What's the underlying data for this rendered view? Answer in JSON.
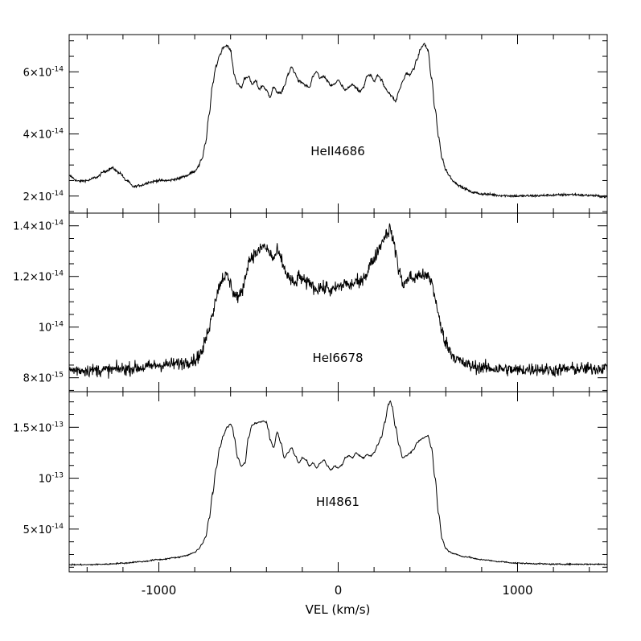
{
  "chart_data": {
    "type": "line",
    "xlabel": "VEL (km/s)",
    "xlim": [
      -1500,
      1500
    ],
    "xticks": [
      {
        "value": -1000,
        "label": "-1000"
      },
      {
        "value": 0,
        "label": "0"
      },
      {
        "value": 1000,
        "label": "1000"
      }
    ],
    "panels": [
      {
        "name": "HeII4686",
        "label": "HeII4686",
        "ylim": [
          1.45e-14,
          7.2e-14
        ],
        "yticks": [
          {
            "value": 2e-14,
            "mantissa": "2",
            "exp": "-14"
          },
          {
            "value": 4e-14,
            "mantissa": "4",
            "exp": "-14"
          },
          {
            "value": 6e-14,
            "mantissa": "6",
            "exp": "-14"
          }
        ],
        "noise": 4e-16,
        "x": [
          -1500,
          -1450,
          -1400,
          -1350,
          -1300,
          -1260,
          -1220,
          -1180,
          -1140,
          -1100,
          -1050,
          -1000,
          -950,
          -900,
          -850,
          -800,
          -780,
          -760,
          -740,
          -720,
          -700,
          -680,
          -660,
          -640,
          -620,
          -600,
          -590,
          -580,
          -560,
          -540,
          -520,
          -500,
          -480,
          -460,
          -440,
          -420,
          -400,
          -380,
          -360,
          -340,
          -320,
          -300,
          -280,
          -260,
          -240,
          -220,
          -200,
          -180,
          -160,
          -140,
          -120,
          -100,
          -80,
          -60,
          -40,
          -20,
          0,
          20,
          40,
          60,
          80,
          100,
          120,
          140,
          160,
          180,
          200,
          220,
          240,
          260,
          280,
          300,
          320,
          340,
          360,
          380,
          400,
          420,
          440,
          460,
          480,
          500,
          520,
          540,
          560,
          580,
          600,
          620,
          640,
          660,
          680,
          700,
          750,
          800,
          850,
          900,
          1000,
          1100,
          1200,
          1300,
          1400,
          1500
        ],
        "y": [
          2.65e-14,
          2.48e-14,
          2.5e-14,
          2.6e-14,
          2.8e-14,
          2.9e-14,
          2.75e-14,
          2.5e-14,
          2.3e-14,
          2.35e-14,
          2.45e-14,
          2.5e-14,
          2.5e-14,
          2.55e-14,
          2.65e-14,
          2.8e-14,
          2.95e-14,
          3.2e-14,
          3.7e-14,
          4.6e-14,
          5.6e-14,
          6.2e-14,
          6.55e-14,
          6.8e-14,
          6.85e-14,
          6.7e-14,
          6.3e-14,
          5.9e-14,
          5.6e-14,
          5.5e-14,
          5.8e-14,
          5.85e-14,
          5.6e-14,
          5.7e-14,
          5.45e-14,
          5.55e-14,
          5.4e-14,
          5.2e-14,
          5.5e-14,
          5.35e-14,
          5.3e-14,
          5.55e-14,
          5.9e-14,
          6.15e-14,
          5.95e-14,
          5.7e-14,
          5.65e-14,
          5.55e-14,
          5.5e-14,
          5.85e-14,
          6e-14,
          5.8e-14,
          5.85e-14,
          5.7e-14,
          5.55e-14,
          5.6e-14,
          5.75e-14,
          5.55e-14,
          5.4e-14,
          5.5e-14,
          5.6e-14,
          5.5e-14,
          5.35e-14,
          5.5e-14,
          5.85e-14,
          5.9e-14,
          5.7e-14,
          5.9e-14,
          5.75e-14,
          5.5e-14,
          5.35e-14,
          5.2e-14,
          5.05e-14,
          5.4e-14,
          5.7e-14,
          5.95e-14,
          5.9e-14,
          6.1e-14,
          6.4e-14,
          6.75e-14,
          6.9e-14,
          6.7e-14,
          5.8e-14,
          4.8e-14,
          3.9e-14,
          3.2e-14,
          2.85e-14,
          2.65e-14,
          2.5e-14,
          2.4e-14,
          2.32e-14,
          2.25e-14,
          2.12e-14,
          2.07e-14,
          2.05e-14,
          2.02e-14,
          2e-14,
          2.01e-14,
          2.03e-14,
          2.05e-14,
          2.02e-14,
          1.98e-14
        ]
      },
      {
        "name": "HeI6678",
        "label": "HeI6678",
        "ylim": [
          7.45e-15,
          1.45e-14
        ],
        "yticks": [
          {
            "value": 8e-15,
            "mantissa": "8",
            "exp": "-15"
          },
          {
            "value": 1e-14,
            "mantissa": "",
            "exp": "-14"
          },
          {
            "value": 1.2e-14,
            "mantissa": "1.2",
            "exp": "-14"
          },
          {
            "value": 1.4e-14,
            "mantissa": "1.4",
            "exp": "-14"
          }
        ],
        "noise": 2.6e-16,
        "x": [
          -1500,
          -1400,
          -1300,
          -1200,
          -1100,
          -1000,
          -900,
          -800,
          -760,
          -740,
          -720,
          -700,
          -680,
          -660,
          -640,
          -620,
          -600,
          -580,
          -560,
          -540,
          -520,
          -500,
          -480,
          -460,
          -440,
          -420,
          -400,
          -380,
          -360,
          -340,
          -320,
          -300,
          -280,
          -260,
          -240,
          -220,
          -200,
          -180,
          -160,
          -140,
          -120,
          -100,
          -80,
          -60,
          -40,
          -20,
          0,
          20,
          40,
          60,
          80,
          100,
          120,
          140,
          160,
          180,
          200,
          220,
          240,
          260,
          280,
          290,
          300,
          320,
          340,
          360,
          380,
          400,
          420,
          440,
          460,
          480,
          500,
          520,
          540,
          560,
          580,
          600,
          620,
          640,
          660,
          680,
          700,
          750,
          800,
          900,
          1000,
          1100,
          1200,
          1300,
          1400,
          1500
        ],
        "y": [
          8.3e-15,
          8.3e-15,
          8.3e-15,
          8.35e-15,
          8.4e-15,
          8.5e-15,
          8.55e-15,
          8.7e-15,
          9e-15,
          9.5e-15,
          1e-14,
          1.06e-14,
          1.12e-14,
          1.17e-14,
          1.2e-14,
          1.2e-14,
          1.17e-14,
          1.13e-14,
          1.12e-14,
          1.13e-14,
          1.19e-14,
          1.26e-14,
          1.28e-14,
          1.29e-14,
          1.3e-14,
          1.32e-14,
          1.31e-14,
          1.29e-14,
          1.27e-14,
          1.3e-14,
          1.27e-14,
          1.23e-14,
          1.2e-14,
          1.18e-14,
          1.17e-14,
          1.2e-14,
          1.19e-14,
          1.17e-14,
          1.18e-14,
          1.16e-14,
          1.15e-14,
          1.16e-14,
          1.15e-14,
          1.16e-14,
          1.14e-14,
          1.15e-14,
          1.16e-14,
          1.16e-14,
          1.18e-14,
          1.16e-14,
          1.17e-14,
          1.18e-14,
          1.17e-14,
          1.2e-14,
          1.21e-14,
          1.25e-14,
          1.27e-14,
          1.3e-14,
          1.33e-14,
          1.36e-14,
          1.38e-14,
          1.39e-14,
          1.36e-14,
          1.3e-14,
          1.22e-14,
          1.17e-14,
          1.18e-14,
          1.2e-14,
          1.19e-14,
          1.2e-14,
          1.21e-14,
          1.2e-14,
          1.2e-14,
          1.18e-14,
          1.12e-14,
          1.04e-14,
          9.8e-15,
          9.4e-15,
          9.1e-15,
          8.9e-15,
          8.75e-15,
          8.65e-15,
          8.55e-15,
          8.45e-15,
          8.4e-15,
          8.35e-15,
          8.3e-15,
          8.35e-15,
          8.3e-15,
          8.35e-15,
          8.35e-15,
          8.4e-15
        ]
      },
      {
        "name": "HI4861",
        "label": "HI4861",
        "ylim": [
          8e-15,
          1.85e-13
        ],
        "yticks": [
          {
            "value": 5e-14,
            "mantissa": "5",
            "exp": "-14"
          },
          {
            "value": 1e-13,
            "mantissa": "",
            "exp": "-13"
          },
          {
            "value": 1.5e-13,
            "mantissa": "1.5",
            "exp": "-13"
          }
        ],
        "noise": 6e-16,
        "x": [
          -1500,
          -1400,
          -1300,
          -1200,
          -1100,
          -1000,
          -900,
          -850,
          -800,
          -780,
          -760,
          -740,
          -720,
          -700,
          -680,
          -660,
          -640,
          -620,
          -600,
          -590,
          -580,
          -560,
          -540,
          -520,
          -500,
          -480,
          -460,
          -440,
          -420,
          -400,
          -390,
          -380,
          -360,
          -340,
          -320,
          -300,
          -280,
          -260,
          -240,
          -220,
          -200,
          -180,
          -160,
          -140,
          -120,
          -100,
          -80,
          -60,
          -40,
          -20,
          0,
          20,
          40,
          60,
          80,
          100,
          120,
          140,
          160,
          180,
          200,
          220,
          240,
          260,
          280,
          290,
          300,
          320,
          340,
          360,
          380,
          400,
          420,
          440,
          460,
          480,
          500,
          520,
          540,
          560,
          580,
          600,
          620,
          640,
          700,
          800,
          900,
          1000,
          1100,
          1200,
          1300,
          1400,
          1500
        ],
        "y": [
          1.5e-14,
          1.5e-14,
          1.55e-14,
          1.65e-14,
          1.8e-14,
          2e-14,
          2.2e-14,
          2.4e-14,
          2.7e-14,
          3e-14,
          3.5e-14,
          4.2e-14,
          6e-14,
          8.5e-14,
          1.1e-13,
          1.3e-13,
          1.42e-13,
          1.5e-13,
          1.53e-13,
          1.5e-13,
          1.4e-13,
          1.2e-13,
          1.12e-13,
          1.15e-13,
          1.4e-13,
          1.52e-13,
          1.54e-13,
          1.55e-13,
          1.56e-13,
          1.55e-13,
          1.48e-13,
          1.38e-13,
          1.3e-13,
          1.45e-13,
          1.35e-13,
          1.2e-13,
          1.25e-13,
          1.3e-13,
          1.22e-13,
          1.15e-13,
          1.2e-13,
          1.18e-13,
          1.12e-13,
          1.15e-13,
          1.1e-13,
          1.15e-13,
          1.18e-13,
          1.12e-13,
          1.08e-13,
          1.12e-13,
          1.1e-13,
          1.13e-13,
          1.2e-13,
          1.22e-13,
          1.2e-13,
          1.25e-13,
          1.22e-13,
          1.2e-13,
          1.23e-13,
          1.22e-13,
          1.25e-13,
          1.33e-13,
          1.4e-13,
          1.55e-13,
          1.72e-13,
          1.76e-13,
          1.7e-13,
          1.5e-13,
          1.32e-13,
          1.2e-13,
          1.22e-13,
          1.25e-13,
          1.28e-13,
          1.35e-13,
          1.38e-13,
          1.4e-13,
          1.42e-13,
          1.3e-13,
          1e-13,
          6.5e-14,
          4e-14,
          3.1e-14,
          2.8e-14,
          2.6e-14,
          2.3e-14,
          2e-14,
          1.8e-14,
          1.65e-14,
          1.6e-14,
          1.55e-14,
          1.55e-14,
          1.55e-14,
          1.55e-14
        ]
      }
    ]
  }
}
